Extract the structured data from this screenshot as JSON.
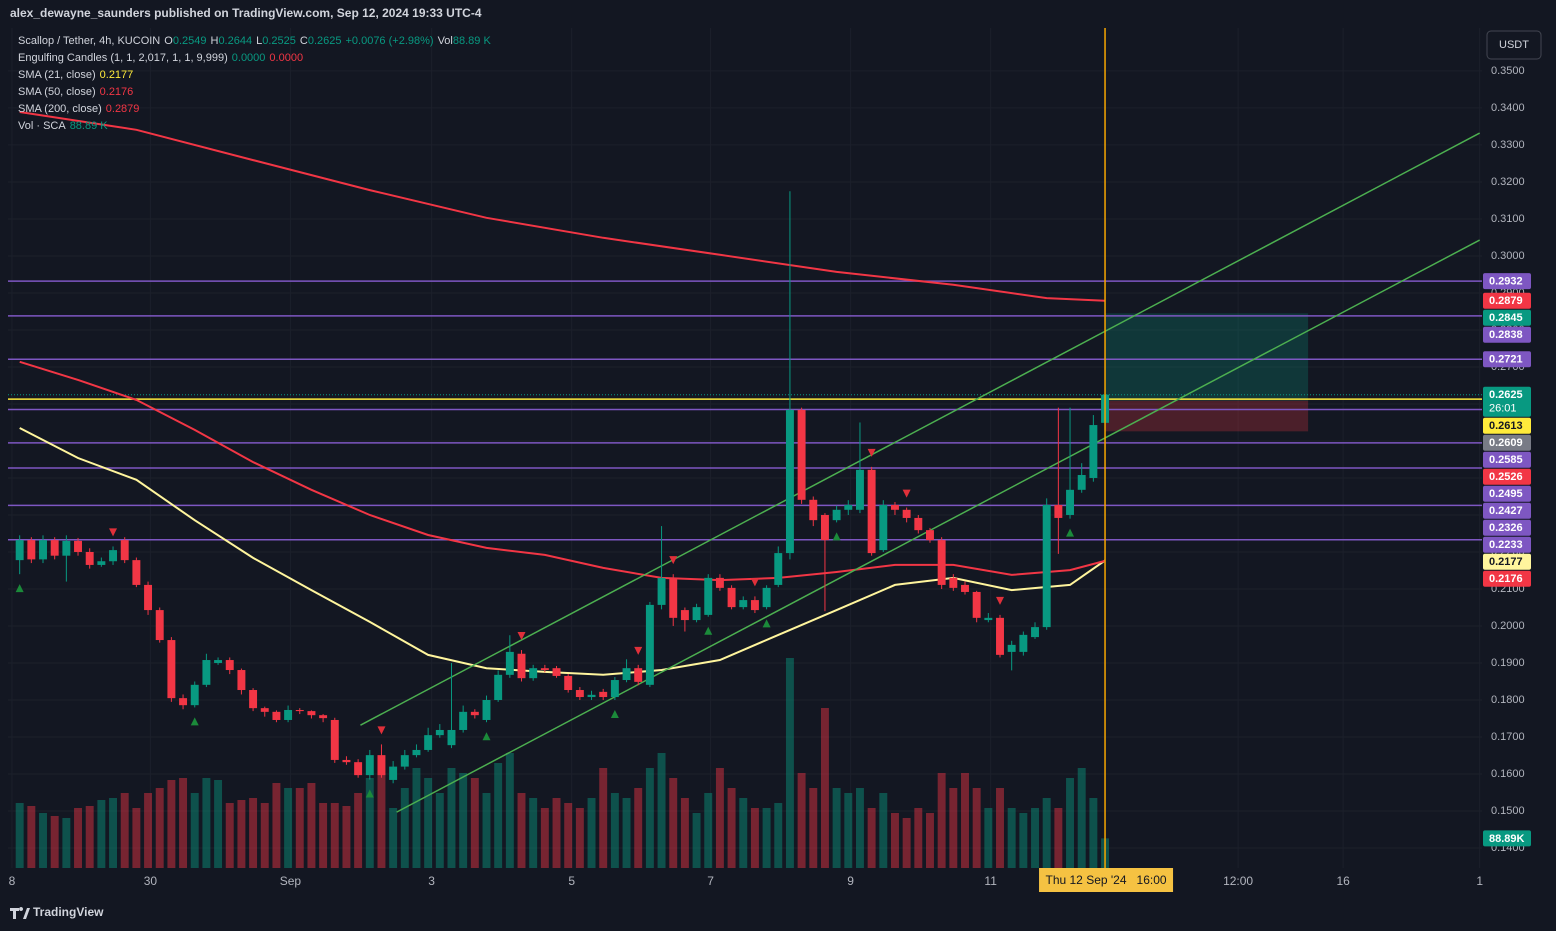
{
  "header": {
    "publisher": "alex_dewayne_saunders published on TradingView.com, Sep 12, 2024 19:33 UTC-4",
    "logo": "TradingView"
  },
  "chart_data": {
    "type": "candlestick",
    "title": "Scallop / Tether, 4h, KUCOIN",
    "ohlc_legend": [
      {
        "label": "O",
        "value": "0.2549"
      },
      {
        "label": "H",
        "value": "0.2644"
      },
      {
        "label": "L",
        "value": "0.2525"
      },
      {
        "label": "C",
        "value": "0.2625"
      }
    ],
    "change": "+0.0076 (+2.98%)",
    "vol_legend": {
      "label": "Vol",
      "value": "88.89 K"
    },
    "indicators": [
      {
        "name": "Engulfing Candles (1, 1, 2,017, 1, 1, 9,999)",
        "values": [
          "0.0000",
          "0.0000"
        ],
        "colors": [
          "#089981",
          "#f23645"
        ]
      }
    ],
    "currency": "USDT",
    "countdown": "26:01",
    "up_color": "#089981",
    "down_color": "#f23645",
    "xlim": [
      -1,
      125.3
    ],
    "xticks": [
      {
        "value": -0.66,
        "label": "8"
      },
      {
        "value": 11.2,
        "label": "30"
      },
      {
        "value": 23.2,
        "label": "Sep"
      },
      {
        "value": 35.3,
        "label": "3"
      },
      {
        "value": 47.3,
        "label": "5"
      },
      {
        "value": 59.2,
        "label": "7"
      },
      {
        "value": 71.2,
        "label": "9"
      },
      {
        "value": 83.2,
        "label": "11"
      },
      {
        "value": 104.4,
        "label": "12:00"
      },
      {
        "value": 113.4,
        "label": "16"
      },
      {
        "value": 125.1,
        "label": "1"
      }
    ],
    "ylim": [
      0.1346,
      0.3616
    ],
    "yticks": [
      {
        "value": 0.35,
        "label": "0.3500"
      },
      {
        "value": 0.34,
        "label": "0.3400"
      },
      {
        "value": 0.33,
        "label": "0.3300"
      },
      {
        "value": 0.32,
        "label": "0.3200"
      },
      {
        "value": 0.31,
        "label": "0.3100"
      },
      {
        "value": 0.3,
        "label": "0.3000"
      },
      {
        "value": 0.29,
        "label": "0.2900"
      },
      {
        "value": 0.28,
        "label": "0.2800"
      },
      {
        "value": 0.27,
        "label": "0.2700"
      },
      {
        "value": 0.26,
        "label": "0.2600"
      },
      {
        "value": 0.25,
        "label": "0.2500"
      },
      {
        "value": 0.24,
        "label": "0.2400"
      },
      {
        "value": 0.23,
        "label": "0.2300"
      },
      {
        "value": 0.22,
        "label": "0.2200"
      },
      {
        "value": 0.21,
        "label": "0.2100"
      },
      {
        "value": 0.2,
        "label": "0.2000"
      },
      {
        "value": 0.19,
        "label": "0.1900"
      },
      {
        "value": 0.18,
        "label": "0.1800"
      },
      {
        "value": 0.17,
        "label": "0.1700"
      },
      {
        "value": 0.16,
        "label": "0.1600"
      },
      {
        "value": 0.15,
        "label": "0.1500"
      },
      {
        "value": 0.14,
        "label": "0.1400"
      }
    ],
    "grid": true,
    "open": [
      0.2178,
      0.2232,
      0.218,
      0.2232,
      0.219,
      0.223,
      0.22,
      0.2165,
      0.2175,
      0.2232,
      0.2178,
      0.2111,
      0.2043,
      0.1962,
      0.1805,
      0.1786,
      0.1841,
      0.19,
      0.1908,
      0.1881,
      0.1827,
      0.1778,
      0.1768,
      0.1746,
      0.1773,
      0.177,
      0.1759,
      0.1746,
      0.1638,
      0.1632,
      0.1597,
      0.1651,
      0.1584,
      0.162,
      0.1651,
      0.1665,
      0.1705,
      0.1678,
      0.1719,
      0.1768,
      0.1746,
      0.18,
      0.1868,
      0.1925,
      0.1859,
      0.1886,
      0.1886,
      0.1865,
      0.1827,
      0.1808,
      0.1822,
      0.1808,
      0.1854,
      0.1886,
      0.1841,
      0.2057,
      0.213,
      0.2043,
      0.2016,
      0.203,
      0.213,
      0.2103,
      0.2051,
      0.207,
      0.2051,
      0.2111,
      0.2197,
      0.2584,
      0.2341,
      0.23,
      0.2286,
      0.2314,
      0.2314,
      0.2422,
      0.2205,
      0.2327,
      0.2314,
      0.2292,
      0.2259,
      0.2232,
      0.213,
      0.2111,
      0.2092,
      0.2016,
      0.2022,
      0.193,
      0.193,
      0.197,
      0.1997,
      0.2327,
      0.23,
      0.2368,
      0.24,
      0.2549
    ],
    "high": [
      0.2245,
      0.224,
      0.2245,
      0.224,
      0.2245,
      0.2238,
      0.221,
      0.2185,
      0.2215,
      0.224,
      0.2185,
      0.212,
      0.205,
      0.197,
      0.1815,
      0.185,
      0.1925,
      0.1915,
      0.1915,
      0.1885,
      0.1832,
      0.1782,
      0.1772,
      0.1785,
      0.1778,
      0.1772,
      0.1762,
      0.1752,
      0.1648,
      0.164,
      0.1665,
      0.168,
      0.1635,
      0.1665,
      0.168,
      0.1725,
      0.1735,
      0.19,
      0.1785,
      0.1775,
      0.1812,
      0.188,
      0.1975,
      0.1935,
      0.1895,
      0.1895,
      0.1892,
      0.187,
      0.1835,
      0.1825,
      0.183,
      0.1862,
      0.191,
      0.1895,
      0.2065,
      0.227,
      0.214,
      0.205,
      0.206,
      0.214,
      0.214,
      0.211,
      0.208,
      0.208,
      0.211,
      0.2215,
      0.3175,
      0.259,
      0.235,
      0.2305,
      0.2325,
      0.234,
      0.255,
      0.243,
      0.234,
      0.2335,
      0.232,
      0.23,
      0.2265,
      0.224,
      0.214,
      0.212,
      0.2095,
      0.2035,
      0.203,
      0.196,
      0.1985,
      0.201,
      0.2345,
      0.259,
      0.259,
      0.244,
      0.257,
      0.2644
    ],
    "low": [
      0.214,
      0.217,
      0.217,
      0.218,
      0.212,
      0.219,
      0.2155,
      0.216,
      0.2165,
      0.217,
      0.2105,
      0.203,
      0.1955,
      0.1795,
      0.1775,
      0.178,
      0.1835,
      0.1895,
      0.187,
      0.1815,
      0.177,
      0.1755,
      0.174,
      0.174,
      0.1762,
      0.175,
      0.174,
      0.163,
      0.1625,
      0.159,
      0.1585,
      0.159,
      0.1575,
      0.1612,
      0.1645,
      0.166,
      0.1698,
      0.167,
      0.1712,
      0.175,
      0.174,
      0.1795,
      0.186,
      0.185,
      0.1852,
      0.1875,
      0.186,
      0.182,
      0.18,
      0.18,
      0.18,
      0.18,
      0.1848,
      0.184,
      0.1835,
      0.2045,
      0.2,
      0.1985,
      0.201,
      0.2025,
      0.2095,
      0.2045,
      0.2045,
      0.2035,
      0.2045,
      0.2105,
      0.218,
      0.233,
      0.227,
      0.204,
      0.228,
      0.23,
      0.2305,
      0.219,
      0.22,
      0.23,
      0.228,
      0.225,
      0.2225,
      0.21,
      0.2095,
      0.2085,
      0.201,
      0.201,
      0.1915,
      0.188,
      0.192,
      0.1965,
      0.199,
      0.2195,
      0.229,
      0.236,
      0.239,
      0.2525
    ],
    "close": [
      0.2232,
      0.218,
      0.2232,
      0.219,
      0.223,
      0.22,
      0.2165,
      0.2175,
      0.2205,
      0.2178,
      0.2111,
      0.2043,
      0.1962,
      0.1805,
      0.1786,
      0.1841,
      0.1908,
      0.1908,
      0.1881,
      0.1827,
      0.1778,
      0.1768,
      0.1746,
      0.1773,
      0.177,
      0.1759,
      0.1751,
      0.1638,
      0.1632,
      0.1597,
      0.1651,
      0.1597,
      0.162,
      0.1651,
      0.1665,
      0.1705,
      0.1719,
      0.1719,
      0.1768,
      0.1759,
      0.18,
      0.1868,
      0.193,
      0.1859,
      0.1886,
      0.1881,
      0.1865,
      0.1827,
      0.1808,
      0.1814,
      0.1808,
      0.1854,
      0.1886,
      0.1849,
      0.2057,
      0.213,
      0.2022,
      0.2016,
      0.2051,
      0.213,
      0.2103,
      0.2051,
      0.207,
      0.2043,
      0.2103,
      0.2197,
      0.2584,
      0.2341,
      0.2286,
      0.2232,
      0.2314,
      0.2327,
      0.2422,
      0.2197,
      0.2327,
      0.2314,
      0.2292,
      0.2259,
      0.2232,
      0.2111,
      0.2103,
      0.2092,
      0.2022,
      0.2022,
      0.1922,
      0.1949,
      0.1976,
      0.1997,
      0.2327,
      0.2292,
      0.2368,
      0.2408,
      0.2543,
      0.2625
    ],
    "volume": {
      "name": "Vol · SCA",
      "legend_value": "88.89 K",
      "last_label": "88.89K",
      "values": [
        195,
        186,
        165,
        156,
        150,
        180,
        186,
        204,
        210,
        225,
        180,
        225,
        240,
        264,
        270,
        225,
        270,
        264,
        195,
        204,
        210,
        195,
        255,
        240,
        240,
        255,
        195,
        195,
        186,
        225,
        270,
        285,
        180,
        240,
        300,
        270,
        225,
        300,
        285,
        270,
        225,
        315,
        345,
        225,
        210,
        180,
        210,
        195,
        180,
        210,
        300,
        225,
        210,
        240,
        300,
        345,
        270,
        210,
        165,
        225,
        300,
        240,
        210,
        180,
        180,
        195,
        630,
        285,
        240,
        480,
        240,
        225,
        240,
        180,
        225,
        165,
        150,
        180,
        165,
        285,
        240,
        285,
        240,
        180,
        240,
        180,
        165,
        180,
        210,
        180,
        270,
        300,
        210,
        88.89
      ]
    },
    "series": [
      {
        "name": "SMA (21, close)",
        "color": "#fff59d",
        "x": [
          0,
          5,
          10,
          15,
          20,
          25,
          30,
          35,
          40,
          45,
          50,
          55,
          60,
          65,
          70,
          75,
          80,
          85,
          90,
          93
        ],
        "values": [
          0.2535,
          0.2454,
          0.2395,
          0.2286,
          0.2184,
          0.2097,
          0.2011,
          0.1922,
          0.1886,
          0.1876,
          0.1868,
          0.1881,
          0.1908,
          0.1976,
          0.2043,
          0.2111,
          0.213,
          0.2097,
          0.2111,
          0.2177
        ]
      },
      {
        "name": "SMA (50, close)",
        "color": "#f23645",
        "x": [
          0,
          5,
          10,
          15,
          20,
          25,
          30,
          35,
          40,
          45,
          50,
          55,
          60,
          65,
          70,
          75,
          80,
          85,
          90,
          93
        ],
        "values": [
          0.2714,
          0.2665,
          0.2611,
          0.253,
          0.2443,
          0.2368,
          0.23,
          0.2246,
          0.2211,
          0.2192,
          0.2157,
          0.213,
          0.2124,
          0.213,
          0.2146,
          0.2165,
          0.2165,
          0.2138,
          0.2151,
          0.2176
        ]
      },
      {
        "name": "SMA (200, close)",
        "color": "#f23645",
        "x": [
          0,
          10,
          20,
          30,
          40,
          50,
          60,
          70,
          80,
          88,
          93
        ],
        "values": [
          0.3389,
          0.3341,
          0.3259,
          0.3178,
          0.3103,
          0.3049,
          0.3003,
          0.2957,
          0.2922,
          0.2886,
          0.2879
        ]
      }
    ],
    "channel": {
      "color": "#4caf50",
      "lines": [
        {
          "x": [
            29.2,
            125.1
          ],
          "values": [
            0.1732,
            0.3332
          ]
        },
        {
          "x": [
            32.3,
            125.1
          ],
          "values": [
            0.1497,
            0.3043
          ]
        }
      ]
    },
    "levels": {
      "color": "#7e57c2",
      "values": [
        0.2932,
        0.2838,
        0.2721,
        0.2585,
        0.2495,
        0.2427,
        0.2326,
        0.2233
      ]
    },
    "horizontal_line": {
      "value": 0.2613,
      "color": "#ffeb3b"
    },
    "position": {
      "x": [
        93,
        110.4
      ],
      "entry": 0.2609,
      "target": 0.2845,
      "stop": 0.2526
    },
    "signals": {
      "bullish": [
        0,
        15,
        30,
        40,
        51,
        59,
        64,
        70,
        90
      ],
      "bearish": [
        8,
        31,
        43,
        53,
        56,
        63,
        73,
        76,
        84
      ]
    },
    "crosshair": {
      "x": 93,
      "label": "Thu 12 Sep '24   16:00",
      "color": "#f7a600"
    }
  }
}
